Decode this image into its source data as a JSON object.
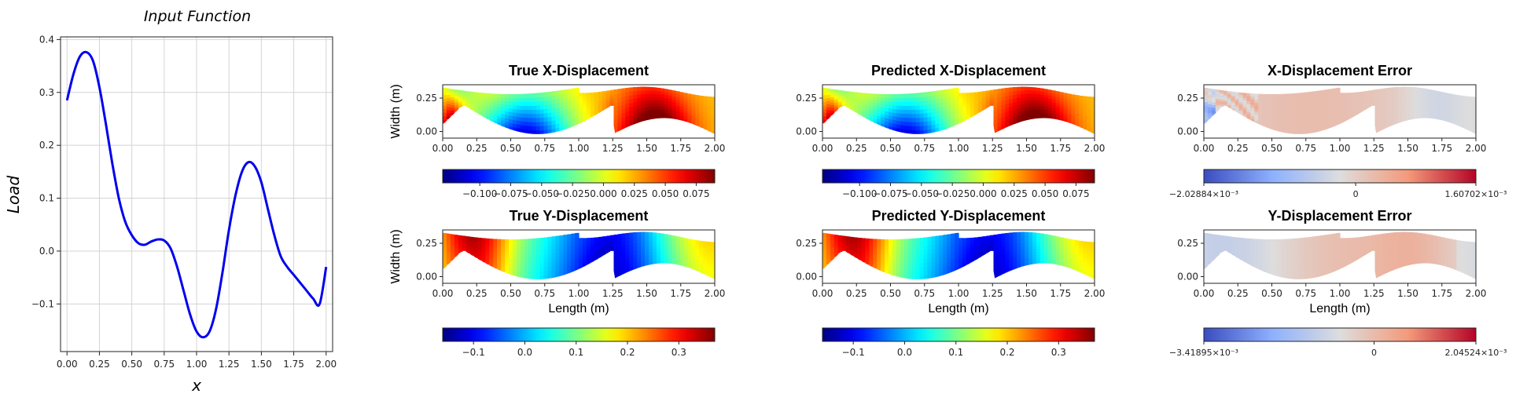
{
  "chart_data": [
    {
      "type": "line",
      "title": "Input Function",
      "xlabel": "x",
      "ylabel": "Load",
      "xlim": [
        -0.05,
        2.05
      ],
      "ylim": [
        -0.19,
        0.405
      ],
      "grid": true,
      "color": "#0000ee",
      "xticks": [
        {
          "value": 0.0,
          "label": "0.00"
        },
        {
          "value": 0.25,
          "label": "0.25"
        },
        {
          "value": 0.5,
          "label": "0.50"
        },
        {
          "value": 0.75,
          "label": "0.75"
        },
        {
          "value": 1.0,
          "label": "1.00"
        },
        {
          "value": 1.25,
          "label": "1.25"
        },
        {
          "value": 1.5,
          "label": "1.50"
        },
        {
          "value": 1.75,
          "label": "1.75"
        },
        {
          "value": 2.0,
          "label": "2.00"
        }
      ],
      "yticks": [
        {
          "value": -0.1,
          "label": "−0.1"
        },
        {
          "value": 0.0,
          "label": "0.0"
        },
        {
          "value": 0.1,
          "label": "0.1"
        },
        {
          "value": 0.2,
          "label": "0.2"
        },
        {
          "value": 0.3,
          "label": "0.3"
        },
        {
          "value": 0.4,
          "label": "0.4"
        }
      ],
      "x": [
        0.0,
        0.05,
        0.1,
        0.15,
        0.2,
        0.25,
        0.3,
        0.35,
        0.4,
        0.45,
        0.5,
        0.55,
        0.6,
        0.65,
        0.7,
        0.75,
        0.8,
        0.85,
        0.9,
        0.95,
        1.0,
        1.05,
        1.1,
        1.15,
        1.2,
        1.25,
        1.3,
        1.35,
        1.4,
        1.45,
        1.5,
        1.55,
        1.6,
        1.65,
        1.7,
        1.75,
        1.8,
        1.85,
        1.9,
        1.95,
        2.0
      ],
      "y": [
        0.285,
        0.335,
        0.368,
        0.376,
        0.36,
        0.31,
        0.24,
        0.165,
        0.1,
        0.055,
        0.03,
        0.015,
        0.012,
        0.018,
        0.022,
        0.02,
        0.005,
        -0.03,
        -0.075,
        -0.12,
        -0.152,
        -0.163,
        -0.152,
        -0.11,
        -0.04,
        0.04,
        0.105,
        0.15,
        0.168,
        0.16,
        0.13,
        0.08,
        0.03,
        -0.01,
        -0.03,
        -0.045,
        -0.06,
        -0.075,
        -0.09,
        -0.1,
        -0.03
      ]
    },
    {
      "type": "heatmap",
      "title": "True X-Displacement",
      "ylabel": "Width (m)",
      "xlabel": "",
      "colormap": "jet",
      "xlim": [
        0,
        2
      ],
      "ylim": [
        -0.05,
        0.35
      ],
      "xticks": [
        "0.00",
        "0.25",
        "0.50",
        "0.75",
        "1.00",
        "1.25",
        "1.50",
        "1.75",
        "2.00"
      ],
      "yticks": [
        "0.00",
        "0.25"
      ],
      "colorbar_range": [
        -0.13,
        0.09
      ],
      "colorbar_ticks": [
        {
          "value": -0.1,
          "label": "−0.100"
        },
        {
          "value": -0.075,
          "label": "−0.075"
        },
        {
          "value": -0.05,
          "label": "−0.050"
        },
        {
          "value": -0.025,
          "label": "−0.025"
        },
        {
          "value": 0.0,
          "label": "0.000"
        },
        {
          "value": 0.025,
          "label": "0.025"
        },
        {
          "value": 0.05,
          "label": "0.050"
        },
        {
          "value": 0.075,
          "label": "0.075"
        }
      ]
    },
    {
      "type": "heatmap",
      "title": "Predicted X-Displacement",
      "ylabel": "",
      "xlabel": "",
      "colormap": "jet",
      "xlim": [
        0,
        2
      ],
      "ylim": [
        -0.05,
        0.35
      ],
      "xticks": [
        "0.00",
        "0.25",
        "0.50",
        "0.75",
        "1.00",
        "1.25",
        "1.50",
        "1.75",
        "2.00"
      ],
      "yticks": [
        "0.00",
        "0.25"
      ],
      "colorbar_range": [
        -0.13,
        0.09
      ],
      "colorbar_ticks": [
        {
          "value": -0.1,
          "label": "−0.100"
        },
        {
          "value": -0.075,
          "label": "−0.075"
        },
        {
          "value": -0.05,
          "label": "−0.050"
        },
        {
          "value": -0.025,
          "label": "−0.025"
        },
        {
          "value": 0.0,
          "label": "0.000"
        },
        {
          "value": 0.025,
          "label": "0.025"
        },
        {
          "value": 0.05,
          "label": "0.050"
        },
        {
          "value": 0.075,
          "label": "0.075"
        }
      ]
    },
    {
      "type": "heatmap",
      "title": "X-Displacement Error",
      "ylabel": "",
      "xlabel": "",
      "colormap": "coolwarm",
      "xlim": [
        0,
        2
      ],
      "ylim": [
        -0.05,
        0.35
      ],
      "xticks": [
        "0.00",
        "0.25",
        "0.50",
        "0.75",
        "1.00",
        "1.25",
        "1.50",
        "1.75",
        "2.00"
      ],
      "yticks": [
        "0.00",
        "0.25"
      ],
      "colorbar_range": [
        -0.00202884,
        0.00160702
      ],
      "colorbar_ticks": [
        {
          "value": -0.00202884,
          "label": "−2.02884×10⁻³"
        },
        {
          "value": 0,
          "label": "0"
        },
        {
          "value": 0.00160702,
          "label": "1.60702×10⁻³"
        }
      ]
    },
    {
      "type": "heatmap",
      "title": "True Y-Displacement",
      "ylabel": "Width (m)",
      "xlabel": "Length (m)",
      "colormap": "jet",
      "xlim": [
        0,
        2
      ],
      "ylim": [
        -0.05,
        0.35
      ],
      "xticks": [
        "0.00",
        "0.25",
        "0.50",
        "0.75",
        "1.00",
        "1.25",
        "1.50",
        "1.75",
        "2.00"
      ],
      "yticks": [
        "0.00",
        "0.25"
      ],
      "colorbar_range": [
        -0.16,
        0.37
      ],
      "colorbar_ticks": [
        {
          "value": -0.1,
          "label": "−0.1"
        },
        {
          "value": 0.0,
          "label": "0.0"
        },
        {
          "value": 0.1,
          "label": "0.1"
        },
        {
          "value": 0.2,
          "label": "0.2"
        },
        {
          "value": 0.3,
          "label": "0.3"
        }
      ]
    },
    {
      "type": "heatmap",
      "title": "Predicted Y-Displacement",
      "ylabel": "",
      "xlabel": "Length (m)",
      "colormap": "jet",
      "xlim": [
        0,
        2
      ],
      "ylim": [
        -0.05,
        0.35
      ],
      "xticks": [
        "0.00",
        "0.25",
        "0.50",
        "0.75",
        "1.00",
        "1.25",
        "1.50",
        "1.75",
        "2.00"
      ],
      "yticks": [
        "0.00",
        "0.25"
      ],
      "colorbar_range": [
        -0.16,
        0.37
      ],
      "colorbar_ticks": [
        {
          "value": -0.1,
          "label": "−0.1"
        },
        {
          "value": 0.0,
          "label": "0.0"
        },
        {
          "value": 0.1,
          "label": "0.1"
        },
        {
          "value": 0.2,
          "label": "0.2"
        },
        {
          "value": 0.3,
          "label": "0.3"
        }
      ]
    },
    {
      "type": "heatmap",
      "title": "Y-Displacement Error",
      "ylabel": "",
      "xlabel": "Length (m)",
      "colormap": "coolwarm",
      "xlim": [
        0,
        2
      ],
      "ylim": [
        -0.05,
        0.35
      ],
      "xticks": [
        "0.00",
        "0.25",
        "0.50",
        "0.75",
        "1.00",
        "1.25",
        "1.50",
        "1.75",
        "2.00"
      ],
      "yticks": [
        "0.00",
        "0.25"
      ],
      "colorbar_range": [
        -0.00341895,
        0.00204524
      ],
      "colorbar_ticks": [
        {
          "value": -0.00341895,
          "label": "−3.41895×10⁻³"
        },
        {
          "value": 0,
          "label": "0"
        },
        {
          "value": 0.00204524,
          "label": "2.04524×10⁻³"
        }
      ]
    }
  ]
}
